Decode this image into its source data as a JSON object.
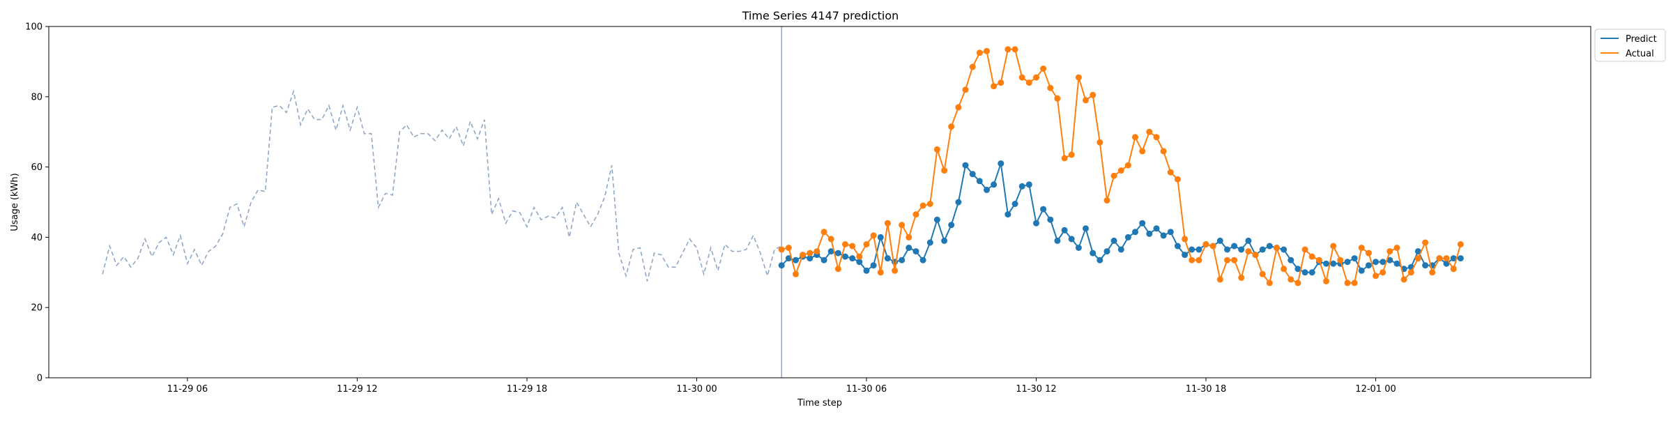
{
  "chart_data": {
    "type": "line",
    "title": "Time Series 4147 prediction",
    "xlabel": "Time step",
    "ylabel": "Usage (kWh)",
    "ylim": [
      0,
      100
    ],
    "yticks": [
      0,
      20,
      40,
      60,
      80,
      100
    ],
    "x_unit": "hour offset from 11-29 00:00",
    "xlim": [
      1.1,
      55.6
    ],
    "xticks": [
      {
        "x": 6,
        "label": "11-29 06"
      },
      {
        "x": 12,
        "label": "11-29 12"
      },
      {
        "x": 18,
        "label": "11-29 18"
      },
      {
        "x": 24,
        "label": "11-30 00"
      },
      {
        "x": 30,
        "label": "11-30 06"
      },
      {
        "x": 36,
        "label": "11-30 12"
      },
      {
        "x": 42,
        "label": "11-30 18"
      },
      {
        "x": 48,
        "label": "12-01 00"
      }
    ],
    "forecast_start_x": 27,
    "history": {
      "style": "dashed",
      "color": "#8fa7c6",
      "x_start": 3,
      "x_step": 0.25,
      "values": [
        29.5,
        37.5,
        32.0,
        34.5,
        31.5,
        34.0,
        39.5,
        34.5,
        38.5,
        40.0,
        35.0,
        40.5,
        32.5,
        36.5,
        32.0,
        36.0,
        37.5,
        41.0,
        48.5,
        49.5,
        43.0,
        50.0,
        53.5,
        53.0,
        77.0,
        77.5,
        75.5,
        81.5,
        72.0,
        76.5,
        73.5,
        73.5,
        77.5,
        70.5,
        77.5,
        70.5,
        77.0,
        69.5,
        69.5,
        48.5,
        52.5,
        52.0,
        70.0,
        72.0,
        68.5,
        69.5,
        69.5,
        67.5,
        70.5,
        68.0,
        71.5,
        66.0,
        73.0,
        68.0,
        73.5,
        46.5,
        51.0,
        44.0,
        47.5,
        47.0,
        43.0,
        48.5,
        45.0,
        46.0,
        45.5,
        48.5,
        40.0,
        50.0,
        46.5,
        43.0,
        46.5,
        51.5,
        60.5,
        35.5,
        29.0,
        36.5,
        37.0,
        27.5,
        35.5,
        35.0,
        31.5,
        31.5,
        35.5,
        39.5,
        37.0,
        29.5,
        37.0,
        30.5,
        38.0,
        36.0,
        36.0,
        36.5,
        40.5,
        35.5,
        29.0,
        36.5,
        37.5
      ]
    },
    "series": [
      {
        "name": "Predict",
        "color": "#1f77b4",
        "x_start": 27,
        "x_step": 0.25,
        "values": [
          32.0,
          34.0,
          33.5,
          34.5,
          34.0,
          35.0,
          33.5,
          36.0,
          35.5,
          34.5,
          34.0,
          33.0,
          30.5,
          32.0,
          40.0,
          34.0,
          33.0,
          33.5,
          37.0,
          36.0,
          33.5,
          38.5,
          45.0,
          39.0,
          43.5,
          50.0,
          60.5,
          58.0,
          56.0,
          53.5,
          55.0,
          61.0,
          46.5,
          49.5,
          54.5,
          55.0,
          44.0,
          48.0,
          45.0,
          39.0,
          42.0,
          39.5,
          37.0,
          42.5,
          35.5,
          33.5,
          36.0,
          39.0,
          36.5,
          40.0,
          41.5,
          44.0,
          41.0,
          42.5,
          40.5,
          41.5,
          37.5,
          35.0,
          36.5,
          36.5,
          38.0,
          37.5,
          39.0,
          36.5,
          37.5,
          36.5,
          39.0,
          35.0,
          36.5,
          37.5,
          37.0,
          36.5,
          33.5,
          31.0,
          30.0,
          30.0,
          33.0,
          32.5,
          32.5,
          32.5,
          33.0,
          34.0,
          30.5,
          32.0,
          33.0,
          33.0,
          33.5,
          32.5,
          31.0,
          31.5,
          36.0,
          32.0,
          32.0,
          34.0,
          32.5,
          34.0,
          34.0
        ]
      },
      {
        "name": "Actual",
        "color": "#ff7f0e",
        "x_start": 27,
        "x_step": 0.25,
        "values": [
          36.5,
          37.0,
          29.5,
          35.0,
          35.5,
          36.0,
          41.5,
          39.5,
          31.0,
          38.0,
          37.5,
          34.5,
          38.0,
          40.5,
          30.0,
          44.0,
          30.5,
          43.5,
          40.0,
          46.5,
          49.0,
          49.5,
          65.0,
          59.0,
          71.5,
          77.0,
          82.0,
          88.5,
          92.5,
          93.0,
          83.0,
          84.0,
          93.5,
          93.5,
          85.5,
          84.0,
          85.5,
          88.0,
          82.5,
          79.5,
          62.5,
          63.5,
          85.5,
          79.0,
          80.5,
          67.0,
          50.5,
          57.5,
          59.0,
          60.5,
          68.5,
          64.5,
          70.0,
          68.5,
          64.5,
          58.5,
          56.5,
          39.5,
          33.5,
          33.5,
          38.0,
          37.5,
          28.0,
          33.5,
          33.5,
          28.5,
          36.0,
          35.0,
          29.5,
          27.0,
          37.0,
          31.0,
          28.0,
          27.0,
          36.5,
          34.5,
          33.5,
          27.5,
          37.5,
          33.5,
          27.0,
          27.0,
          37.0,
          35.5,
          29.0,
          30.0,
          36.0,
          37.0,
          28.0,
          30.0,
          34.0,
          38.5,
          30.0,
          34.0,
          34.0,
          31.0,
          38.0
        ]
      }
    ],
    "legend": {
      "placement": "top-right-outside",
      "entries": [
        "Predict",
        "Actual"
      ]
    },
    "grid": false
  }
}
